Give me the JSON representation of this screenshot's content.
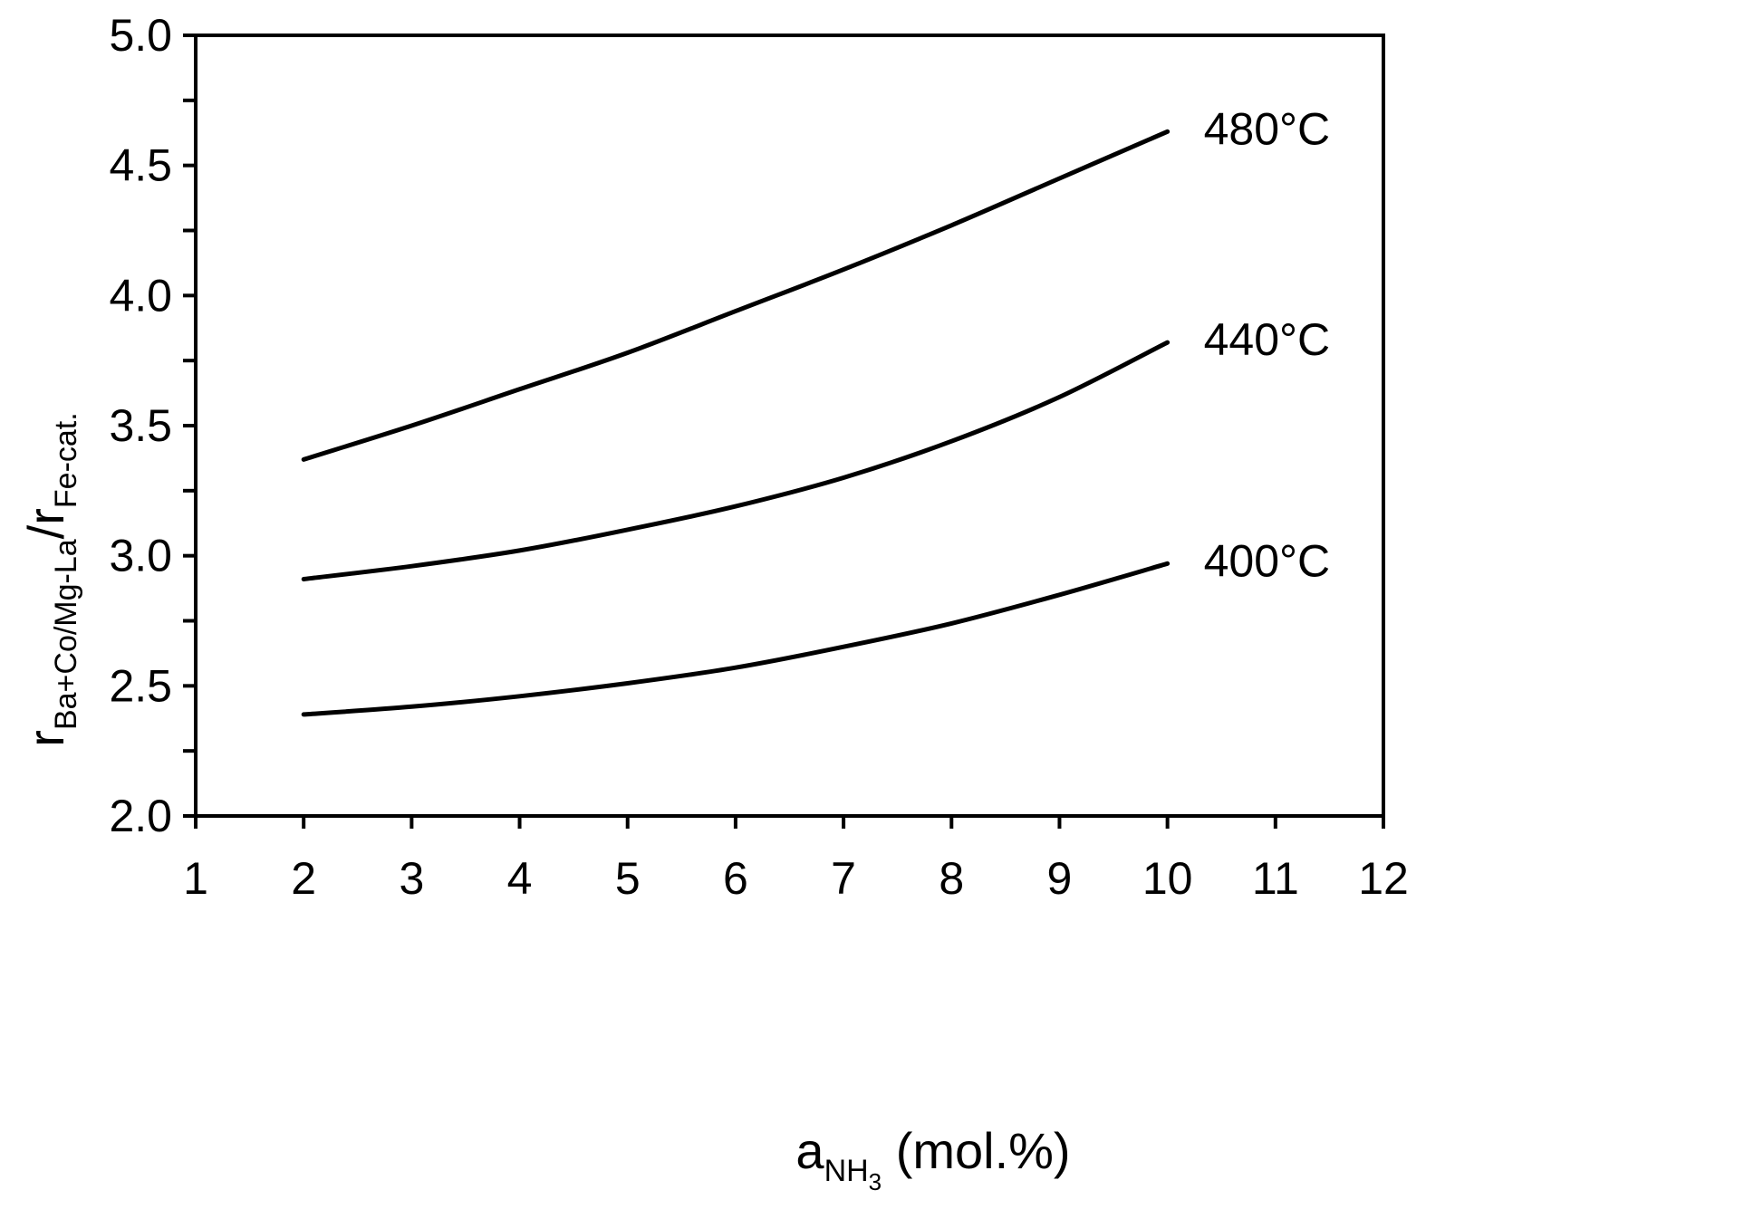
{
  "chart_data": {
    "type": "line",
    "title": "",
    "xlabel": {
      "base": "a",
      "subscript": "NH",
      "subsub": "3",
      "suffix": " (mol.%)"
    },
    "ylabel": {
      "r1": "r",
      "sub1": "Ba+Co/Mg-La",
      "slash": "/",
      "r2": "r",
      "sub2": "Fe-cat."
    },
    "xlim": [
      1,
      12
    ],
    "ylim": [
      2.0,
      5.0
    ],
    "xticks": [
      1,
      2,
      3,
      4,
      5,
      6,
      7,
      8,
      9,
      10,
      11,
      12
    ],
    "xtick_labels": [
      "1",
      "2",
      "3",
      "4",
      "5",
      "6",
      "7",
      "8",
      "9",
      "10",
      "11",
      "12"
    ],
    "yticks": [
      2.0,
      2.5,
      3.0,
      3.5,
      4.0,
      4.5,
      5.0
    ],
    "ytick_labels": [
      "2.0",
      "2.5",
      "3.0",
      "3.5",
      "4.0",
      "4.5",
      "5.0"
    ],
    "y_minor_step": 0.25,
    "grid": false,
    "legend": "none",
    "line_color": "#000000",
    "x": [
      2,
      3,
      4,
      5,
      6,
      7,
      8,
      9,
      10
    ],
    "series": [
      {
        "name": "480°C",
        "values": [
          3.37,
          3.5,
          3.64,
          3.78,
          3.94,
          4.1,
          4.27,
          4.45,
          4.63
        ]
      },
      {
        "name": "440°C",
        "values": [
          2.91,
          2.96,
          3.02,
          3.1,
          3.19,
          3.3,
          3.44,
          3.61,
          3.82
        ]
      },
      {
        "name": "400°C",
        "values": [
          2.39,
          2.42,
          2.46,
          2.51,
          2.57,
          2.65,
          2.74,
          2.85,
          2.97
        ]
      }
    ]
  }
}
